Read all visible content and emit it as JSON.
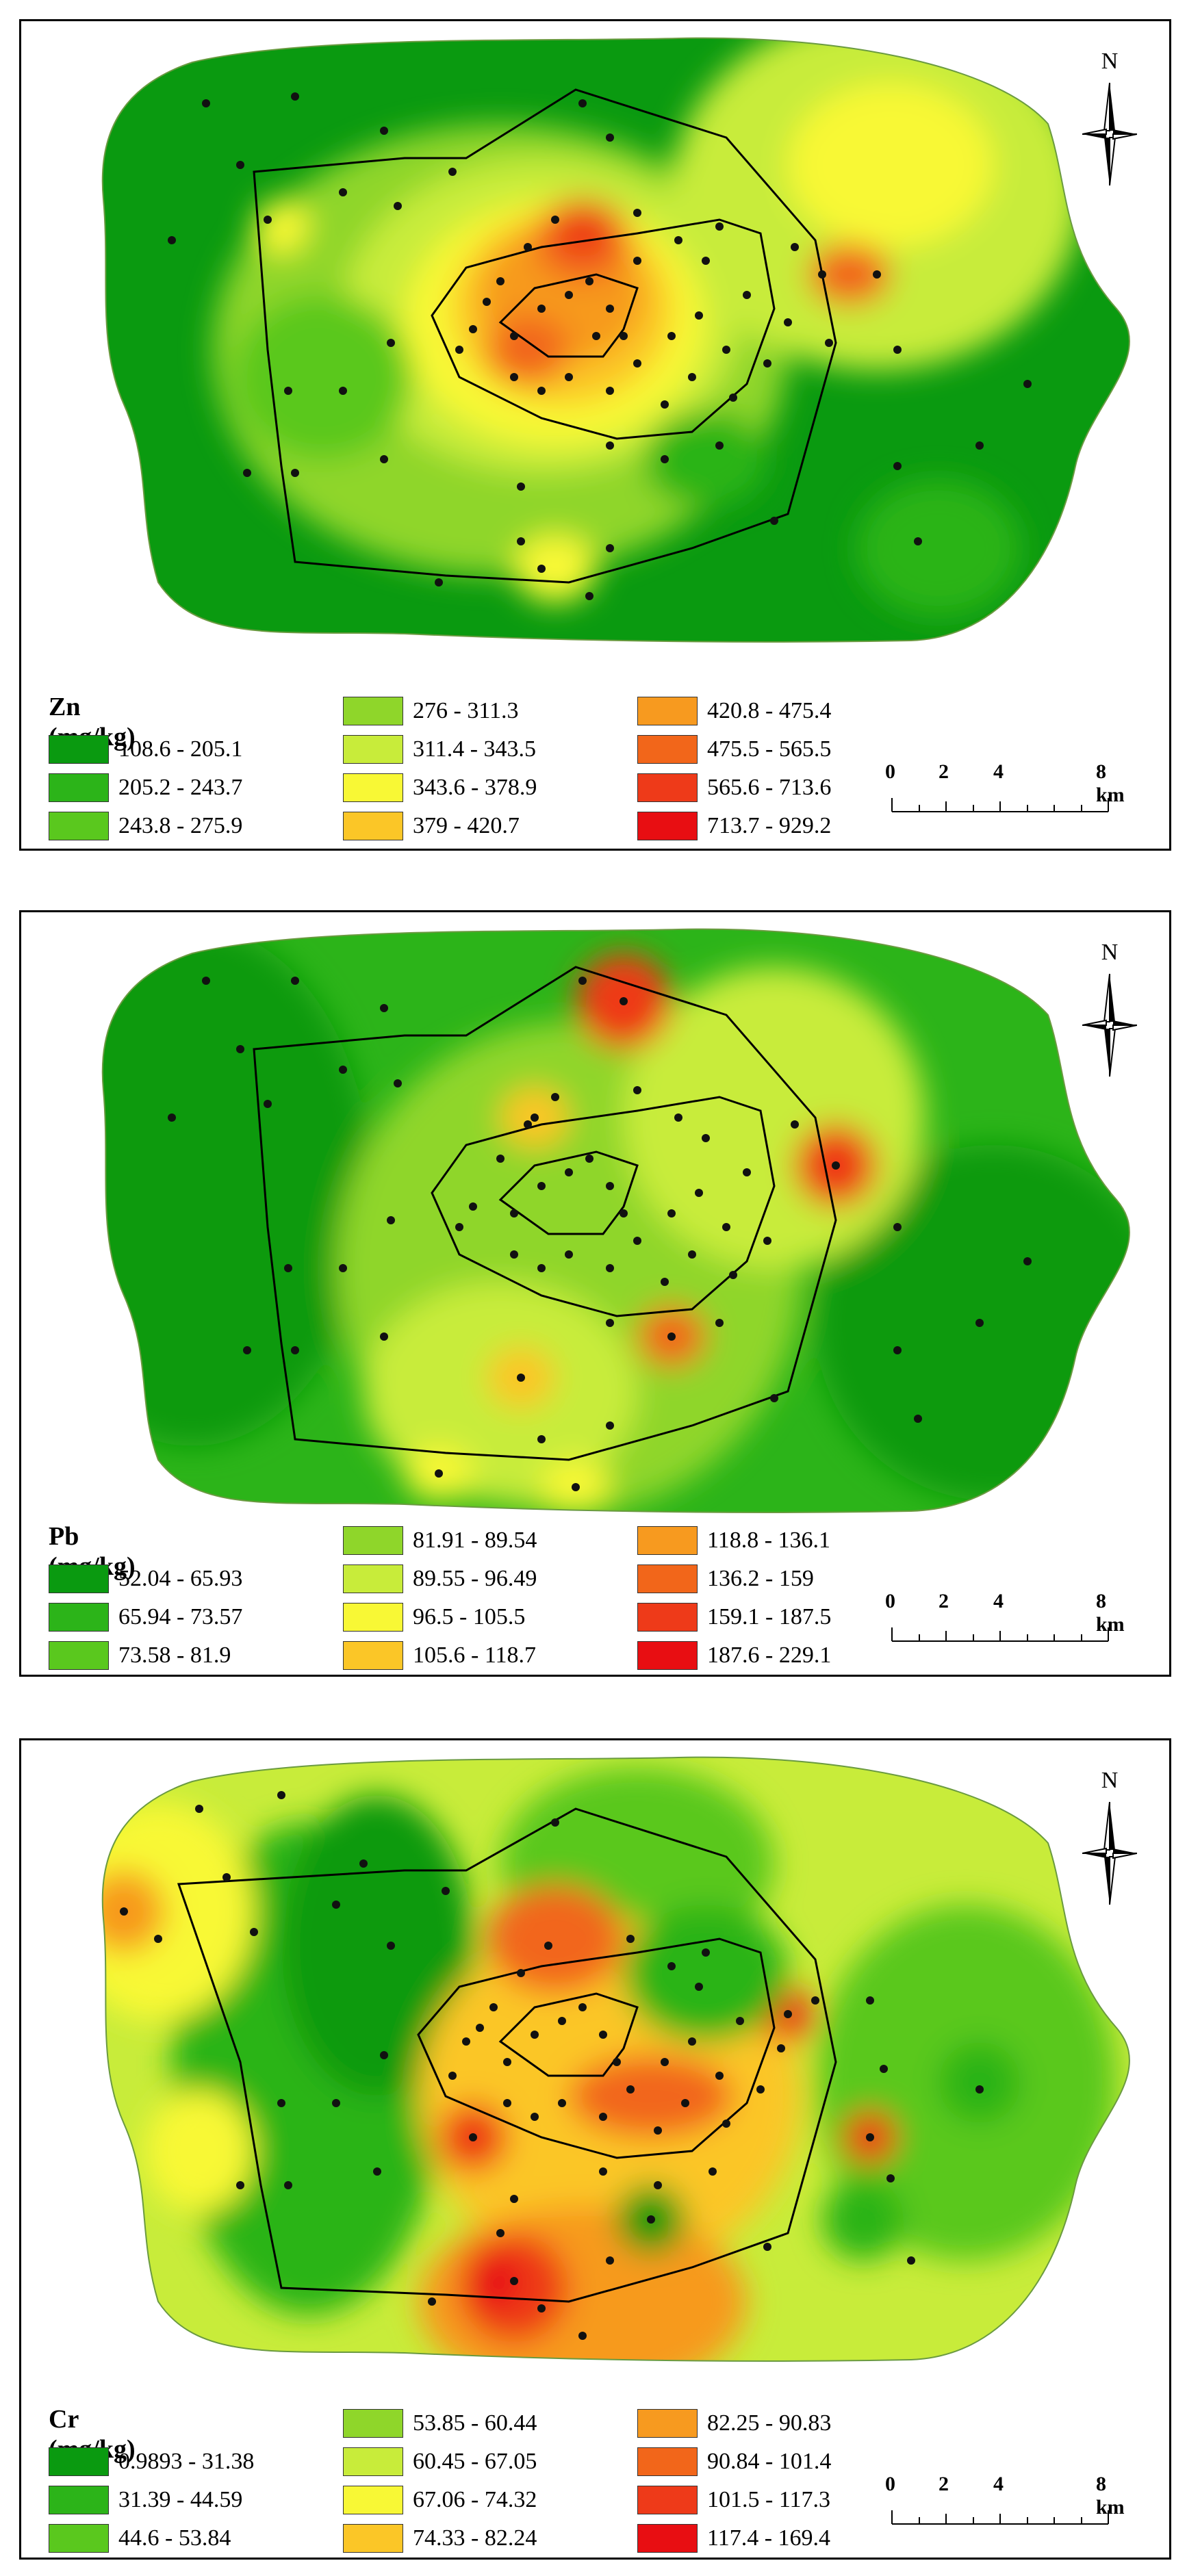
{
  "north_label": "N",
  "scale": {
    "ticks": [
      "0",
      "2",
      "4",
      "8 km"
    ]
  },
  "maps": [
    {
      "element": "Zn",
      "legend_title": "Zn (mg/kg)",
      "classes": [
        {
          "label": "108.6 - 205.1",
          "color": "#0a9a10"
        },
        {
          "label": "205.2 - 243.7",
          "color": "#2cb419"
        },
        {
          "label": "243.8 - 275.9",
          "color": "#5ac81e"
        },
        {
          "label": "276 - 311.3",
          "color": "#8fd62a"
        },
        {
          "label": "311.4 - 343.5",
          "color": "#c8ec3a"
        },
        {
          "label": "343.6 - 378.9",
          "color": "#f8f835"
        },
        {
          "label": "379 - 420.7",
          "color": "#fbc627"
        },
        {
          "label": "420.8 - 475.4",
          "color": "#f79a1f"
        },
        {
          "label": "475.5 - 565.5",
          "color": "#f2661a"
        },
        {
          "label": "565.6 - 713.6",
          "color": "#ee3a19"
        },
        {
          "label": "713.7 - 929.2",
          "color": "#e80e12"
        }
      ]
    },
    {
      "element": "Pb",
      "legend_title": "Pb (mg/kg)",
      "classes": [
        {
          "label": "52.04 - 65.93",
          "color": "#0a9a10"
        },
        {
          "label": "65.94 - 73.57",
          "color": "#2cb419"
        },
        {
          "label": "73.58 - 81.9",
          "color": "#5ac81e"
        },
        {
          "label": "81.91 - 89.54",
          "color": "#8fd62a"
        },
        {
          "label": "89.55 - 96.49",
          "color": "#c8ec3a"
        },
        {
          "label": "96.5 - 105.5",
          "color": "#f8f835"
        },
        {
          "label": "105.6 - 118.7",
          "color": "#fbc627"
        },
        {
          "label": "118.8 - 136.1",
          "color": "#f79a1f"
        },
        {
          "label": "136.2 - 159",
          "color": "#f2661a"
        },
        {
          "label": "159.1 - 187.5",
          "color": "#ee3a19"
        },
        {
          "label": "187.6 - 229.1",
          "color": "#e80e12"
        }
      ]
    },
    {
      "element": "Cr",
      "legend_title": "Cr (mg/kg)",
      "classes": [
        {
          "label": "0.9893 - 31.38",
          "color": "#0a9a10"
        },
        {
          "label": "31.39 - 44.59",
          "color": "#2cb419"
        },
        {
          "label": "44.6 - 53.84",
          "color": "#5ac81e"
        },
        {
          "label": "53.85 - 60.44",
          "color": "#8fd62a"
        },
        {
          "label": "60.45 - 67.05",
          "color": "#c8ec3a"
        },
        {
          "label": "67.06 - 74.32",
          "color": "#f8f835"
        },
        {
          "label": "74.33 - 82.24",
          "color": "#fbc627"
        },
        {
          "label": "82.25 - 90.83",
          "color": "#f79a1f"
        },
        {
          "label": "90.84 - 101.4",
          "color": "#f2661a"
        },
        {
          "label": "101.5 - 117.3",
          "color": "#ee3a19"
        },
        {
          "label": "117.4 - 169.4",
          "color": "#e80e12"
        }
      ]
    }
  ]
}
